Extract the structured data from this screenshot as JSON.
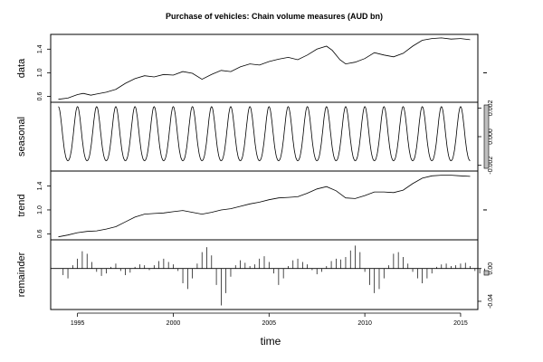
{
  "chart_data": {
    "type": "line",
    "title": "Purchase of vehicles: Chain volume measures (AUD bn)",
    "xlabel": "time",
    "xlim": [
      1993.6,
      2015.9
    ],
    "x_ticks": [
      1995,
      2000,
      2005,
      2010,
      2015
    ],
    "x_tick_labels": [
      "1995",
      "2000",
      "2005",
      "2010",
      "2015"
    ],
    "grid": false,
    "legend": "none",
    "panels": [
      {
        "name": "data",
        "ylabel": "data",
        "ylim": [
          0.5,
          1.65
        ],
        "y_ticks": [
          0.6,
          1.0,
          1.4
        ],
        "y_tick_labels": [
          "0.6",
          "1.0",
          "1.4"
        ],
        "tick_side": "left",
        "series": {
          "x": [
            1994.0,
            1994.5,
            1995.0,
            1995.3,
            1995.7,
            1996.0,
            1996.5,
            1997.0,
            1997.5,
            1998.0,
            1998.5,
            1999.0,
            1999.5,
            2000.0,
            2000.5,
            2001.0,
            2001.5,
            2002.0,
            2002.5,
            2003.0,
            2003.5,
            2004.0,
            2004.5,
            2005.0,
            2005.5,
            2006.0,
            2006.5,
            2007.0,
            2007.5,
            2008.0,
            2008.3,
            2008.7,
            2009.0,
            2009.5,
            2010.0,
            2010.5,
            2011.0,
            2011.5,
            2012.0,
            2012.5,
            2013.0,
            2013.5,
            2014.0,
            2014.5,
            2015.0,
            2015.5
          ],
          "y": [
            0.55,
            0.57,
            0.63,
            0.65,
            0.62,
            0.64,
            0.67,
            0.72,
            0.82,
            0.9,
            0.95,
            0.93,
            0.97,
            0.96,
            1.02,
            0.99,
            0.89,
            0.97,
            1.04,
            1.02,
            1.1,
            1.15,
            1.13,
            1.19,
            1.23,
            1.26,
            1.22,
            1.3,
            1.4,
            1.45,
            1.38,
            1.22,
            1.15,
            1.18,
            1.24,
            1.34,
            1.3,
            1.27,
            1.33,
            1.45,
            1.55,
            1.58,
            1.59,
            1.57,
            1.58,
            1.56
          ]
        }
      },
      {
        "name": "seasonal",
        "ylabel": "seasonal",
        "ylim": [
          -0.0024,
          0.0024
        ],
        "y_ticks": [
          -0.002,
          0.0,
          0.002
        ],
        "y_tick_labels": [
          "-0.002",
          "0.000",
          "0.002"
        ],
        "tick_side": "right",
        "periodic": {
          "period_years": 1.0,
          "amplitude": 0.0021,
          "start": 1994.0,
          "end": 2015.5
        }
      },
      {
        "name": "trend",
        "ylabel": "trend",
        "ylim": [
          0.5,
          1.65
        ],
        "y_ticks": [
          0.6,
          1.0,
          1.4
        ],
        "y_tick_labels": [
          "0.6",
          "1.0",
          "1.4"
        ],
        "tick_side": "left",
        "series": {
          "x": [
            1994.0,
            1994.5,
            1995.0,
            1995.5,
            1996.0,
            1996.5,
            1997.0,
            1997.5,
            1998.0,
            1998.5,
            1999.0,
            1999.5,
            2000.0,
            2000.5,
            2001.0,
            2001.5,
            2002.0,
            2002.5,
            2003.0,
            2003.5,
            2004.0,
            2004.5,
            2005.0,
            2005.5,
            2006.0,
            2006.5,
            2007.0,
            2007.5,
            2008.0,
            2008.5,
            2009.0,
            2009.5,
            2010.0,
            2010.5,
            2011.0,
            2011.5,
            2012.0,
            2012.5,
            2013.0,
            2013.5,
            2014.0,
            2014.5,
            2015.0,
            2015.5
          ],
          "y": [
            0.55,
            0.58,
            0.62,
            0.64,
            0.65,
            0.68,
            0.72,
            0.8,
            0.88,
            0.93,
            0.94,
            0.95,
            0.97,
            0.99,
            0.96,
            0.93,
            0.96,
            1.0,
            1.02,
            1.06,
            1.1,
            1.13,
            1.17,
            1.2,
            1.21,
            1.22,
            1.28,
            1.35,
            1.39,
            1.32,
            1.2,
            1.19,
            1.24,
            1.3,
            1.3,
            1.29,
            1.33,
            1.44,
            1.53,
            1.57,
            1.58,
            1.58,
            1.57,
            1.56
          ]
        }
      },
      {
        "name": "remainder",
        "ylabel": "remainder",
        "ylim": [
          -0.05,
          0.035
        ],
        "y_ticks": [
          -0.04,
          0.0
        ],
        "y_tick_labels": [
          "-0.04",
          "0.00"
        ],
        "tick_side": "right",
        "bars": {
          "start": 1994.0,
          "step": 0.25,
          "values": [
            0.0,
            -0.008,
            -0.012,
            0.004,
            0.012,
            0.021,
            0.018,
            0.008,
            -0.004,
            -0.009,
            -0.006,
            0.002,
            0.006,
            -0.003,
            -0.008,
            -0.005,
            0.002,
            0.005,
            0.004,
            -0.002,
            0.004,
            0.009,
            0.012,
            0.008,
            0.005,
            -0.003,
            -0.018,
            -0.025,
            -0.012,
            0.006,
            0.02,
            0.026,
            0.016,
            -0.02,
            -0.045,
            -0.03,
            -0.01,
            0.004,
            0.01,
            0.007,
            0.003,
            0.005,
            0.012,
            0.015,
            0.008,
            -0.006,
            -0.02,
            -0.012,
            0.003,
            0.01,
            0.012,
            0.008,
            0.005,
            -0.002,
            -0.007,
            -0.004,
            0.003,
            0.009,
            0.012,
            0.011,
            0.014,
            0.022,
            0.028,
            0.02,
            -0.004,
            -0.02,
            -0.03,
            -0.025,
            -0.012,
            0.004,
            0.018,
            0.02,
            0.014,
            0.006,
            -0.004,
            -0.012,
            -0.018,
            -0.012,
            -0.006,
            0.002,
            0.005,
            0.006,
            0.003,
            0.004,
            0.006,
            0.007,
            0.003,
            -0.003,
            -0.006,
            -0.004
          ]
        }
      }
    ],
    "seasonal_scale_bar": true,
    "remainder_scale_bar": true
  }
}
